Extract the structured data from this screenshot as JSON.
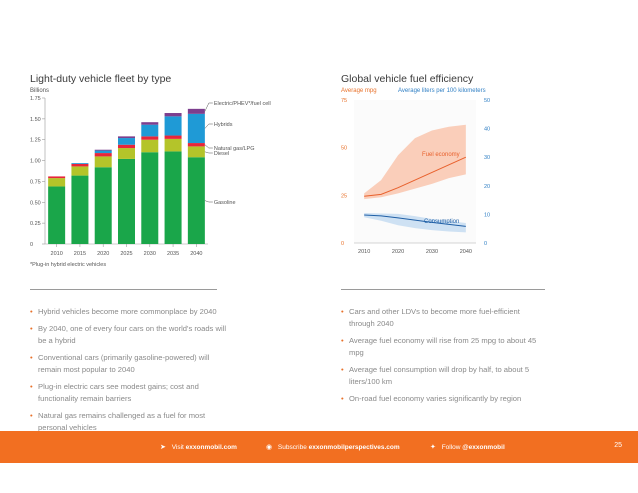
{
  "left_chart": {
    "title": "Light-duty vehicle fleet by type",
    "unit": "Billions",
    "footnote": "*Plug-in hybrid electric vehicles"
  },
  "right_chart": {
    "title": "Global vehicle fuel efficiency",
    "left_axis_label": "Average mpg",
    "right_axis_label": "Average liters per 100 kilometers"
  },
  "chart_data": [
    {
      "type": "bar",
      "stacked": true,
      "title": "Light-duty vehicle fleet by type",
      "ylabel": "Billions",
      "ylim": [
        0,
        1.75
      ],
      "yticks": [
        "0",
        "0.25",
        "0.50",
        "0.75",
        "1.00",
        "1.25",
        "1.50",
        "1.75"
      ],
      "categories": [
        "2010",
        "2015",
        "2020",
        "2025",
        "2030",
        "2035",
        "2040"
      ],
      "series": [
        {
          "name": "Gasoline",
          "color": "#1aa64a",
          "values": [
            0.69,
            0.82,
            0.92,
            1.02,
            1.1,
            1.11,
            1.04
          ]
        },
        {
          "name": "Diesel",
          "color": "#b4c42a",
          "values": [
            0.1,
            0.11,
            0.13,
            0.13,
            0.15,
            0.15,
            0.13
          ]
        },
        {
          "name": "Natural gas/LPG",
          "color": "#e8253a",
          "values": [
            0.02,
            0.03,
            0.04,
            0.04,
            0.04,
            0.04,
            0.04
          ]
        },
        {
          "name": "Hybrids",
          "color": "#1f9ad6",
          "values": [
            0.0,
            0.01,
            0.03,
            0.08,
            0.14,
            0.23,
            0.35
          ]
        },
        {
          "name": "Electric/PHEV*/fuel cell",
          "color": "#7d3e8e",
          "values": [
            0.0,
            0.0,
            0.01,
            0.02,
            0.03,
            0.04,
            0.06
          ]
        }
      ]
    },
    {
      "type": "line",
      "title": "Global vehicle fuel efficiency",
      "x": [
        2010,
        2015,
        2020,
        2025,
        2030,
        2035,
        2040
      ],
      "xticks": [
        "2010",
        "2020",
        "2030",
        "2040"
      ],
      "xlim": [
        2007,
        2043
      ],
      "y_left": {
        "label": "Average mpg",
        "lim": [
          0,
          75
        ],
        "ticks": [
          "0",
          "25",
          "50",
          "75"
        ]
      },
      "y_right": {
        "label": "Average liters per 100 kilometers",
        "lim": [
          0,
          50
        ],
        "ticks": [
          "0",
          "10",
          "20",
          "30",
          "40",
          "50"
        ]
      },
      "series": [
        {
          "name": "Fuel economy",
          "axis": "left",
          "color": "#e8602c",
          "band_color": "#f9c9b3",
          "values": [
            24.5,
            25.5,
            29,
            33,
            37,
            41,
            45
          ],
          "band_low": [
            23,
            24,
            26,
            28.5,
            31,
            34,
            36
          ],
          "band_high": [
            26,
            33,
            46,
            55,
            59,
            61,
            62
          ]
        },
        {
          "name": "Consumption",
          "axis": "right",
          "color": "#1f5fa6",
          "band_color": "#c9def2",
          "values": [
            9.8,
            9.5,
            8.8,
            8.0,
            7.2,
            6.5,
            5.8
          ],
          "band_low": [
            9.0,
            7.8,
            6.2,
            5.2,
            4.5,
            4.0,
            3.7
          ],
          "band_high": [
            10.5,
            10.3,
            10.2,
            9.4,
            8.4,
            7.7,
            7.0
          ]
        }
      ]
    }
  ],
  "left_bullets": [
    "Hybrid vehicles become more commonplace by 2040",
    "By 2040, one of every four cars on the world's roads will be a hybrid",
    "Conventional cars (primarily gasoline-powered) will remain most popular to 2040",
    "Plug-in electric cars see modest gains; cost and functionality remain barriers",
    "Natural gas remains challenged as a fuel for most personal vehicles"
  ],
  "right_bullets": [
    "Cars and other LDVs to become more fuel-efficient through 2040",
    "Average fuel economy will rise from 25 mpg to about 45 mpg",
    "Average fuel consumption will drop by half, to about 5 liters/100 km",
    "On-road fuel economy varies significantly by region"
  ],
  "footer": {
    "visit_prefix": "Visit",
    "visit_link": "exxonmobil.com",
    "subscribe_prefix": "Subscribe",
    "subscribe_link": "exxonmobilperspectives.com",
    "follow_prefix": "Follow",
    "follow_link": "@exxonmobil",
    "page_number": "25"
  }
}
